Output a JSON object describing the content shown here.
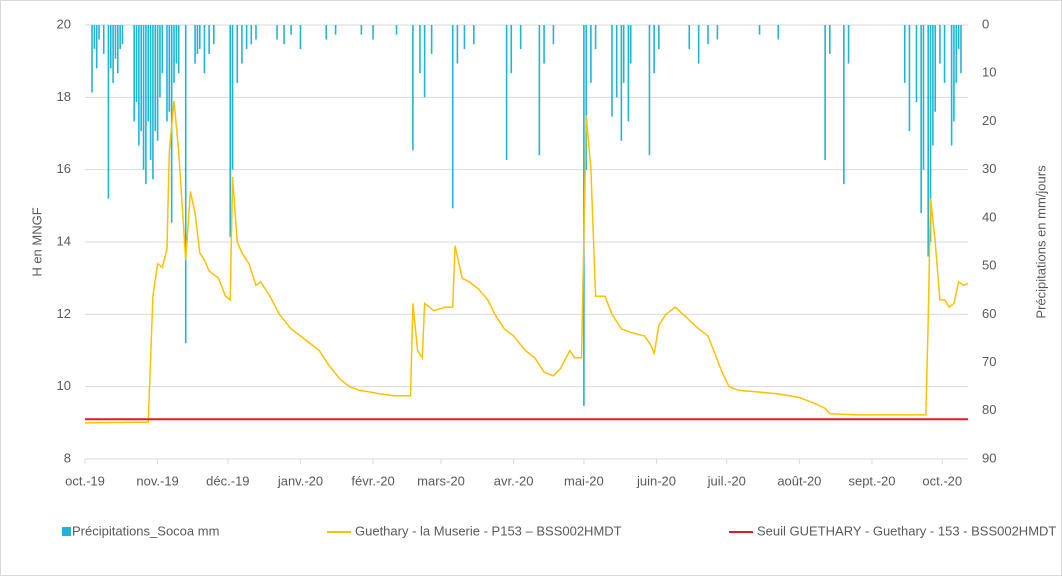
{
  "chart_data": {
    "type": "combo",
    "xlim": [
      0,
      377
    ],
    "xticks": [
      {
        "value": 0,
        "label": "oct.-19"
      },
      {
        "value": 31,
        "label": "nov.-19"
      },
      {
        "value": 61,
        "label": "déc.-19"
      },
      {
        "value": 92,
        "label": "janv.-20"
      },
      {
        "value": 123,
        "label": "févr.-20"
      },
      {
        "value": 152,
        "label": "mars-20"
      },
      {
        "value": 183,
        "label": "avr.-20"
      },
      {
        "value": 213,
        "label": "mai-20"
      },
      {
        "value": 244,
        "label": "juin-20"
      },
      {
        "value": 274,
        "label": "juil.-20"
      },
      {
        "value": 305,
        "label": "août-20"
      },
      {
        "value": 336,
        "label": "sept.-20"
      },
      {
        "value": 366,
        "label": "oct.-20"
      }
    ],
    "ylim": [
      8,
      20
    ],
    "yticks": [
      8,
      10,
      12,
      14,
      16,
      18,
      20
    ],
    "y2lim": [
      0,
      90
    ],
    "y2ticks": [
      0,
      10,
      20,
      30,
      40,
      50,
      60,
      70,
      80,
      90
    ],
    "y2reverse": true,
    "ylabel": "H en MNGF",
    "y2label": "Précipitations en mm/jours",
    "grid": true,
    "series": [
      {
        "name": "Précipitations_Socoa mm",
        "type": "bar",
        "axis": "y2",
        "color": "#1fb5d6",
        "x": [
          3,
          4,
          5,
          6,
          8,
          10,
          11,
          12,
          13,
          14,
          15,
          16,
          21,
          22,
          23,
          24,
          25,
          26,
          27,
          28,
          29,
          30,
          31,
          32,
          33,
          35,
          36,
          37,
          38,
          39,
          40,
          43,
          47,
          48,
          49,
          51,
          53,
          55,
          62,
          63,
          65,
          67,
          69,
          71,
          73,
          82,
          85,
          88,
          92,
          103,
          107,
          118,
          123,
          133,
          140,
          143,
          145,
          148,
          157,
          159,
          162,
          166,
          180,
          182,
          186,
          194,
          196,
          200,
          213,
          214,
          216,
          218,
          225,
          227,
          229,
          230,
          232,
          233,
          241,
          243,
          245,
          258,
          262,
          266,
          270,
          288,
          296,
          316,
          318,
          324,
          326,
          350,
          352,
          355,
          357,
          358,
          360,
          361,
          362,
          363,
          365,
          367,
          370,
          371,
          372,
          373,
          374
        ],
        "values": [
          14,
          5,
          9,
          3,
          6,
          36,
          9,
          12,
          7,
          10,
          5,
          4,
          20,
          16,
          25,
          22,
          30,
          33,
          20,
          28,
          32,
          22,
          24,
          15,
          10,
          20,
          18,
          41,
          12,
          8,
          10,
          66,
          8,
          6,
          5,
          10,
          6,
          4,
          44,
          30,
          12,
          8,
          5,
          4,
          3,
          3,
          4,
          2,
          5,
          3,
          2,
          2,
          3,
          2,
          26,
          10,
          15,
          6,
          38,
          8,
          5,
          4,
          28,
          10,
          5,
          27,
          8,
          4,
          79,
          30,
          12,
          5,
          19,
          15,
          24,
          12,
          20,
          8,
          27,
          10,
          5,
          5,
          8,
          4,
          3,
          2,
          3,
          28,
          6,
          33,
          8,
          12,
          22,
          16,
          39,
          30,
          48,
          45,
          25,
          18,
          8,
          12,
          25,
          20,
          12,
          5,
          10
        ]
      },
      {
        "name": "Guethary  - la Muserie - P153 – BSS002HMDT",
        "type": "line",
        "color": "#ffc000",
        "x": [
          0,
          27,
          29,
          31,
          33,
          35,
          36,
          38,
          40,
          43,
          45,
          47,
          49,
          51,
          53,
          57,
          60,
          62,
          63,
          65,
          67,
          70,
          73,
          75,
          79,
          83,
          88,
          92,
          96,
          100,
          104,
          109,
          113,
          117,
          122,
          126,
          132,
          139,
          140,
          142,
          144,
          145,
          147,
          149,
          154,
          157,
          158,
          161,
          164,
          168,
          172,
          175,
          179,
          183,
          188,
          192,
          196,
          200,
          203,
          207,
          209,
          212,
          214,
          216,
          218,
          222,
          225,
          229,
          233,
          239,
          242,
          243,
          245,
          248,
          252,
          257,
          262,
          266,
          269,
          272,
          275,
          279,
          288,
          296,
          305,
          311,
          316,
          318,
          330,
          348,
          359,
          360,
          361,
          363,
          365,
          367,
          369,
          371,
          373,
          375,
          377
        ],
        "values": [
          9.0,
          9.02,
          12.5,
          13.4,
          13.3,
          13.8,
          16.5,
          17.9,
          16.5,
          13.5,
          15.4,
          14.8,
          13.7,
          13.5,
          13.2,
          13.0,
          12.5,
          12.4,
          15.8,
          14.0,
          13.7,
          13.4,
          12.8,
          12.9,
          12.5,
          12.0,
          11.6,
          11.4,
          11.2,
          11.0,
          10.6,
          10.2,
          10.0,
          9.9,
          9.85,
          9.8,
          9.75,
          9.75,
          12.3,
          11.0,
          10.8,
          12.3,
          12.2,
          12.1,
          12.2,
          12.2,
          13.9,
          13.0,
          12.9,
          12.7,
          12.4,
          12.0,
          11.6,
          11.4,
          11.0,
          10.8,
          10.4,
          10.3,
          10.5,
          11.0,
          10.8,
          10.8,
          17.5,
          16.0,
          12.5,
          12.5,
          12.0,
          11.6,
          11.5,
          11.4,
          11.1,
          10.9,
          11.7,
          12.0,
          12.2,
          11.9,
          11.6,
          11.4,
          10.9,
          10.4,
          10.0,
          9.9,
          9.85,
          9.8,
          9.7,
          9.55,
          9.4,
          9.25,
          9.22,
          9.22,
          9.22,
          11.8,
          15.2,
          14.0,
          12.4,
          12.4,
          12.2,
          12.3,
          12.9,
          12.8,
          12.85
        ]
      },
      {
        "name": "Seuil GUETHARY - Guethary - 153 - BSS002HMDT",
        "type": "line",
        "color": "#e31a1c",
        "x": [
          0,
          377
        ],
        "values": [
          9.1,
          9.1
        ]
      }
    ]
  }
}
